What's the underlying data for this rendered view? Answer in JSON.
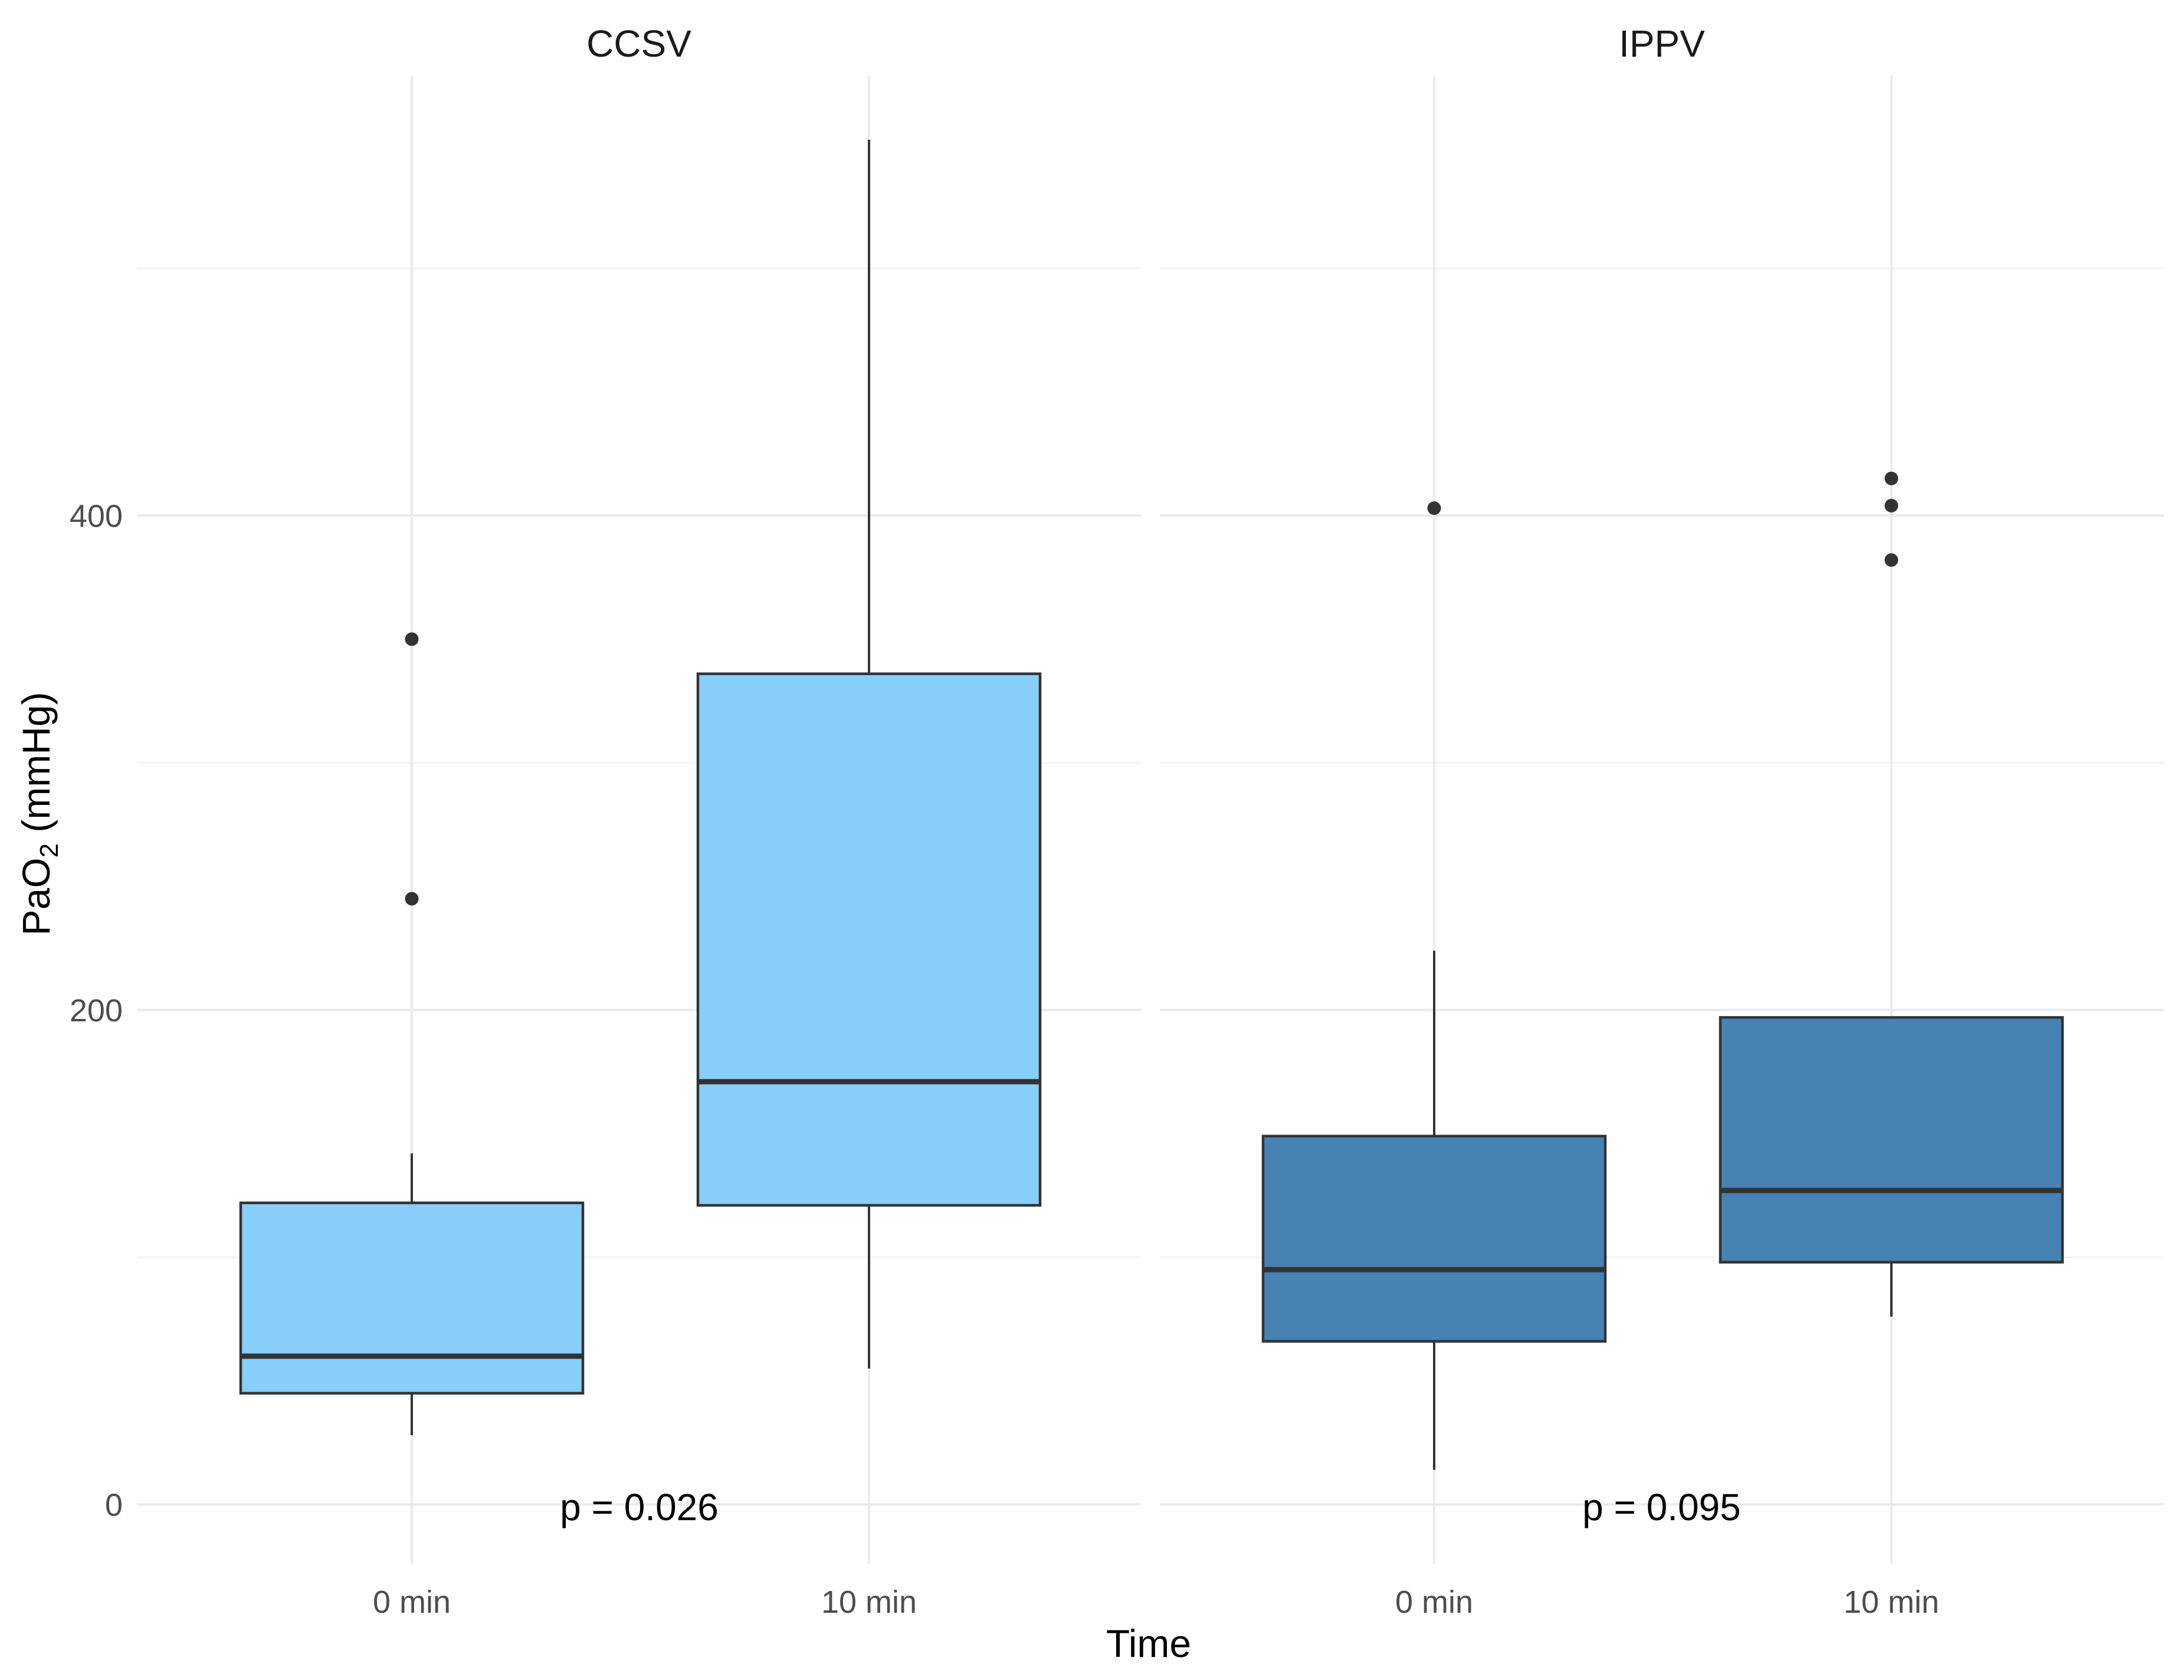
{
  "chart_data": {
    "type": "boxplot",
    "ylabel_main": "PaO",
    "ylabel_sub": "2",
    "ylabel_unit": " (mmHg)",
    "xlabel": "Time",
    "categories": [
      "0 min",
      "10 min"
    ],
    "y_ticks": [
      "0",
      "200",
      "400"
    ],
    "y_tick_values": [
      0,
      200,
      400
    ],
    "ylim": [
      -24,
      578
    ],
    "colors": {
      "CCSV": "#87CEFA",
      "IPPV": "#4682B4",
      "stroke": "#333333"
    },
    "panels": [
      {
        "title": "CCSV",
        "p_label": "p = 0.026",
        "boxes": [
          {
            "category": "0 min",
            "whisker_low": 28,
            "q1": 45,
            "median": 60,
            "q3": 122,
            "whisker_high": 142,
            "outliers": [
              245,
              350
            ]
          },
          {
            "category": "10 min",
            "whisker_low": 55,
            "q1": 121,
            "median": 171,
            "q3": 336,
            "whisker_high": 552,
            "outliers": []
          }
        ]
      },
      {
        "title": "IPPV",
        "p_label": "p = 0.095",
        "boxes": [
          {
            "category": "0 min",
            "whisker_low": 14,
            "q1": 66,
            "median": 95,
            "q3": 149,
            "whisker_high": 224,
            "outliers": [
              403
            ]
          },
          {
            "category": "10 min",
            "whisker_low": 76,
            "q1": 98,
            "median": 127,
            "q3": 197,
            "whisker_high": 197,
            "outliers": [
              382,
              404,
              415
            ]
          }
        ]
      }
    ]
  }
}
